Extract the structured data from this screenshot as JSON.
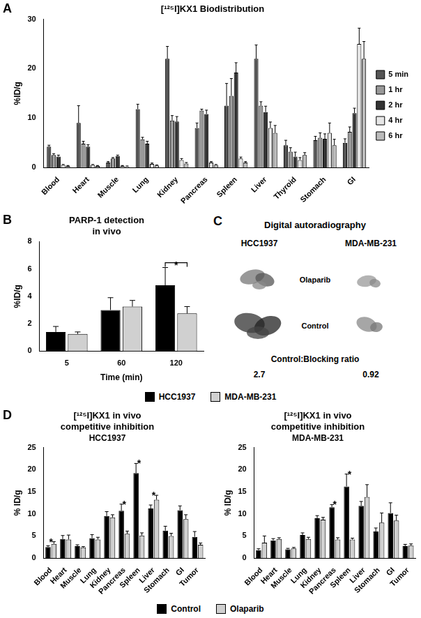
{
  "chart_data": [
    {
      "panel_label": "A",
      "type": "bar",
      "title": "[¹²⁵I]KX1 Biodistribution",
      "y_label": "%ID/g",
      "categories": [
        "Blood",
        "Heart",
        "Muscle",
        "Lung",
        "Kidney",
        "Pancreas",
        "Spleen",
        "Liver",
        "Thyroid",
        "Stomach",
        "GI"
      ],
      "series": [
        {
          "name": "5 min",
          "color": "#555555",
          "values": [
            4.2,
            9,
            1,
            11.8,
            22,
            8,
            12.5,
            22,
            4.5,
            5.5,
            5
          ],
          "errors": [
            0.3,
            3.5,
            0.2,
            1.0,
            2.5,
            1.0,
            4.5,
            2.8,
            1.0,
            0.8,
            0.8
          ]
        },
        {
          "name": "1 hr",
          "color": "#999999",
          "values": [
            2.5,
            4.8,
            1.8,
            5.7,
            9.5,
            11.5,
            14.5,
            12.5,
            3.2,
            6,
            7.2
          ],
          "errors": [
            0.3,
            0.5,
            0.2,
            0.4,
            1.0,
            0.3,
            3.5,
            0.8,
            0.8,
            1.0,
            1.0
          ]
        },
        {
          "name": "2 hr",
          "color": "#333333",
          "values": [
            2.2,
            4.2,
            2.3,
            4.8,
            9.3,
            10.8,
            19.2,
            11.2,
            2.2,
            5.8,
            11
          ],
          "errors": [
            0.3,
            0.4,
            0.2,
            0.5,
            1.0,
            0.8,
            2.0,
            1.2,
            0.9,
            1.0,
            1.0
          ]
        },
        {
          "name": "4 hr",
          "color": "#e6e6e6",
          "values": [
            0.5,
            0.5,
            0.3,
            0.7,
            1.5,
            1,
            1.8,
            8,
            1.5,
            7,
            25
          ],
          "errors": [
            0.1,
            0.1,
            0.1,
            0.2,
            0.3,
            0.2,
            0.3,
            1.2,
            0.5,
            2.0,
            3.2
          ]
        },
        {
          "name": "6 hr",
          "color": "#bbbbbb",
          "values": [
            0.3,
            0.3,
            0.2,
            0.4,
            0.8,
            0.5,
            1,
            7,
            2.5,
            4.5,
            22
          ],
          "errors": [
            0.1,
            0.1,
            0.1,
            0.1,
            0.2,
            0.1,
            0.2,
            1.5,
            0.5,
            1.2,
            3.5
          ]
        }
      ],
      "ylim": [
        0,
        30
      ],
      "yticks": [
        0,
        10,
        20,
        30
      ],
      "grid": false,
      "legend": "right"
    },
    {
      "panel_label": "B",
      "type": "bar",
      "title": [
        "PARP-1 detection",
        "in vivo"
      ],
      "y_label": "%ID/g",
      "x_label": "Time (min)",
      "categories": [
        "5",
        "60",
        "120"
      ],
      "series": [
        {
          "name": "HCC1937",
          "color": "#000000",
          "values": [
            1.4,
            3.0,
            4.8
          ],
          "errors": [
            0.4,
            0.9,
            1.3
          ]
        },
        {
          "name": "MDA-MB-231",
          "color": "#d0d0d0",
          "values": [
            1.25,
            3.25,
            2.75
          ],
          "errors": [
            0.15,
            0.45,
            0.5
          ]
        }
      ],
      "annotations": [
        {
          "category": "120",
          "text": "*",
          "marker": "bracket"
        }
      ],
      "ylim": [
        0,
        8
      ],
      "yticks": [
        0,
        2,
        4,
        6,
        8
      ],
      "grid": false,
      "legend": "bottom"
    },
    {
      "panel_label": "D",
      "type": "bar",
      "title": [
        "[¹²⁵I]KX1 in vivo",
        "competitive inhibition"
      ],
      "subtitle": "HCC1937",
      "y_label": "% ID/g",
      "categories": [
        "Blood",
        "Heart",
        "Muscle",
        "Lung",
        "Kidney",
        "Pancreas",
        "Spleen",
        "Liver",
        "Stomach",
        "GI",
        "Tumor"
      ],
      "series": [
        {
          "name": "Control",
          "color": "#000000",
          "values": [
            2.5,
            4.3,
            2.7,
            4.5,
            9.5,
            10.7,
            19.2,
            11.2,
            6.2,
            10.8,
            4.8
          ],
          "errors": [
            0.3,
            0.8,
            0.3,
            0.8,
            1.0,
            1.5,
            2.2,
            0.8,
            1.0,
            1.0,
            1.2
          ]
        },
        {
          "name": "Olaparib",
          "color": "#d0d0d0",
          "values": [
            3.2,
            4.2,
            2.4,
            4.2,
            9.2,
            5.5,
            5.1,
            13.2,
            5.0,
            8.8,
            3.0
          ],
          "errors": [
            0.5,
            1.0,
            0.2,
            0.5,
            0.6,
            0.6,
            0.6,
            1.0,
            0.6,
            1.0,
            0.4
          ]
        }
      ],
      "annotations": [
        {
          "category": "Blood",
          "text": "*"
        },
        {
          "category": "Pancreas",
          "text": "*"
        },
        {
          "category": "Spleen",
          "text": "*"
        },
        {
          "category": "Liver",
          "text": "*"
        }
      ],
      "ylim": [
        0,
        25
      ],
      "yticks": [
        0,
        5,
        10,
        15,
        20,
        25
      ],
      "grid": false,
      "legend": "bottom"
    },
    {
      "type": "bar",
      "title": [
        "[¹²⁵I]KX1 in vivo",
        "competitive inhibition"
      ],
      "subtitle": "MDA-MB-231",
      "y_label": "% ID/g",
      "categories": [
        "Blood",
        "Heart",
        "Muscle",
        "Lung",
        "Kidney",
        "Pancreas",
        "Spleen",
        "Liver",
        "Stomach",
        "GI",
        "Tumor"
      ],
      "series": [
        {
          "name": "Control",
          "color": "#000000",
          "values": [
            1.8,
            4.0,
            2.0,
            5.2,
            9.0,
            11.5,
            16.2,
            11.8,
            6.0,
            10.2,
            2.7
          ],
          "errors": [
            0.3,
            0.4,
            0.2,
            0.5,
            0.6,
            0.6,
            2.8,
            1.0,
            0.8,
            2.3,
            0.4
          ]
        },
        {
          "name": "Olaparib",
          "color": "#d0d0d0",
          "values": [
            3.5,
            4.3,
            2.2,
            4.3,
            8.7,
            4.2,
            4.2,
            13.8,
            8.0,
            8.5,
            2.8
          ],
          "errors": [
            1.5,
            0.3,
            0.2,
            0.4,
            0.5,
            0.4,
            0.3,
            2.8,
            2.2,
            1.2,
            0.4
          ]
        }
      ],
      "annotations": [
        {
          "category": "Pancreas",
          "text": "*"
        },
        {
          "category": "Spleen",
          "text": "*"
        }
      ],
      "ylim": [
        0,
        25
      ],
      "yticks": [
        0,
        5,
        10,
        15,
        20,
        25
      ],
      "grid": false
    }
  ],
  "autoradiography": {
    "panel_label": "C",
    "title": "Digital autoradiography",
    "columns": [
      "HCC1937",
      "MDA-MB-231"
    ],
    "rows": [
      "Olaparib",
      "Control"
    ],
    "ratio_label": "Control:Blocking ratio",
    "ratios": [
      2.7,
      0.92
    ]
  }
}
